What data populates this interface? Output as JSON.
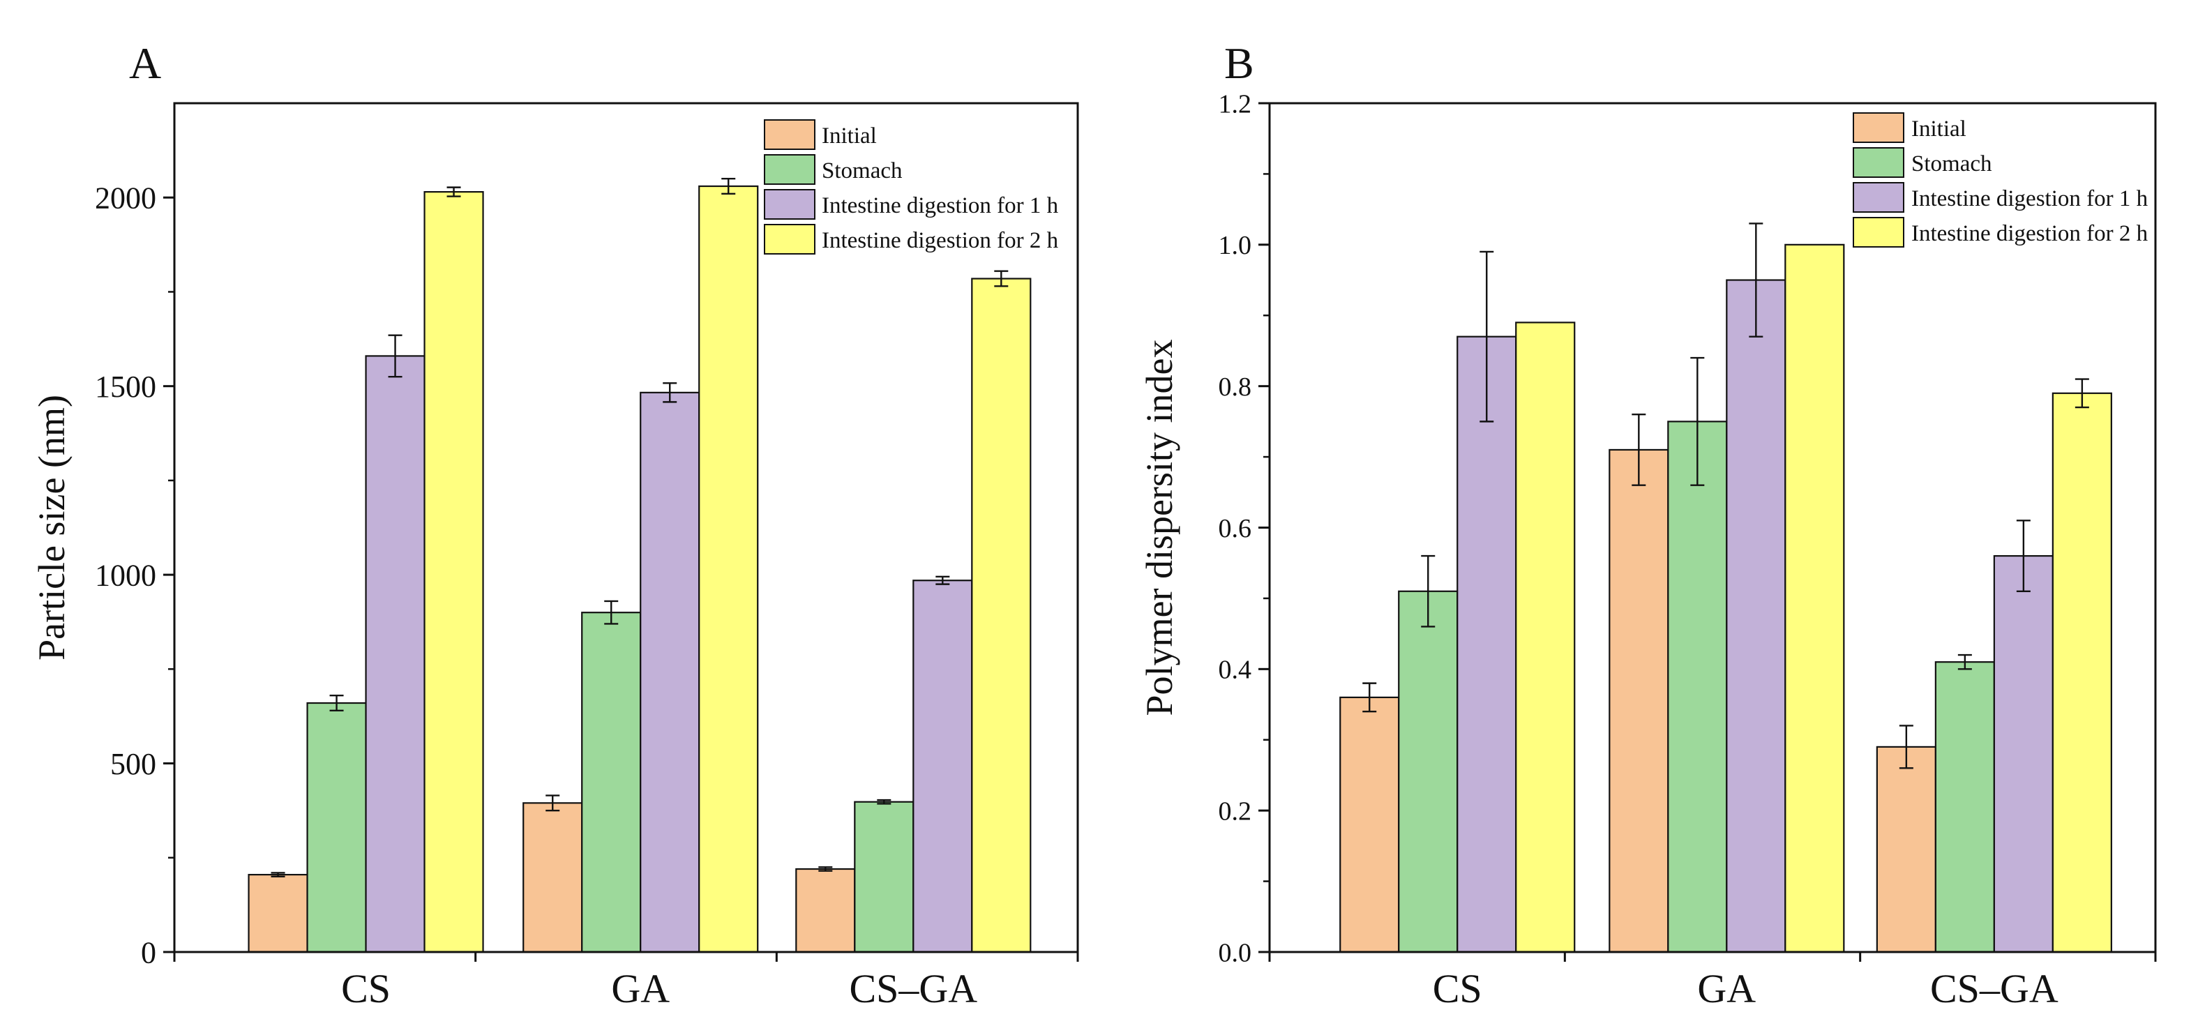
{
  "colors": {
    "initial": "#F8C495",
    "stomach": "#9DD99B",
    "intestine_1h": "#C2B1D8",
    "intestine_2h": "#FFFF80",
    "axis": "#111111"
  },
  "chart_data": [
    {
      "type": "bar",
      "panel_label": "A",
      "title": "",
      "xlabel": "",
      "ylabel": "Particle size (nm)",
      "ylim": [
        0,
        2250
      ],
      "yticks": [
        0,
        500,
        1000,
        1500,
        2000
      ],
      "ytick_labels": [
        "0",
        "500",
        "1000",
        "1500",
        "2000"
      ],
      "grid": false,
      "legend_position": "top-right",
      "categories": [
        "CS",
        "GA",
        "CS–GA"
      ],
      "series": [
        {
          "name": "Initial",
          "color_key": "initial",
          "values": [
            205,
            395,
            220
          ],
          "errors": [
            5,
            20,
            5
          ]
        },
        {
          "name": "Stomach",
          "color_key": "stomach",
          "values": [
            660,
            900,
            398
          ],
          "errors": [
            20,
            30,
            5
          ]
        },
        {
          "name": "Intestine digestion for 1 h",
          "color_key": "intestine_1h",
          "values": [
            1580,
            1483,
            985
          ],
          "errors": [
            55,
            25,
            10
          ]
        },
        {
          "name": "Intestine digestion for 2 h",
          "color_key": "intestine_2h",
          "values": [
            2015,
            2030,
            1785
          ],
          "errors": [
            12,
            20,
            20
          ]
        }
      ]
    },
    {
      "type": "bar",
      "panel_label": "B",
      "title": "",
      "xlabel": "",
      "ylabel": "Polymer dispersity index",
      "ylim": [
        0,
        1.2
      ],
      "yticks": [
        0,
        0.2,
        0.4,
        0.6,
        0.8,
        1.0,
        1.2
      ],
      "ytick_labels": [
        "0.0",
        "0.2",
        "0.4",
        "0.6",
        "0.8",
        "1.0",
        "1.2"
      ],
      "grid": false,
      "legend_position": "top-right",
      "categories": [
        "CS",
        "GA",
        "CS–GA"
      ],
      "series": [
        {
          "name": "Initial",
          "color_key": "initial",
          "values": [
            0.36,
            0.71,
            0.29
          ],
          "errors": [
            0.02,
            0.05,
            0.03
          ]
        },
        {
          "name": "Stomach",
          "color_key": "stomach",
          "values": [
            0.51,
            0.75,
            0.41
          ],
          "errors": [
            0.05,
            0.09,
            0.01
          ]
        },
        {
          "name": "Intestine digestion for 1 h",
          "color_key": "intestine_1h",
          "values": [
            0.87,
            0.95,
            0.56
          ],
          "errors": [
            0.12,
            0.08,
            0.05
          ]
        },
        {
          "name": "Intestine digestion for 2 h",
          "color_key": "intestine_2h",
          "values": [
            0.89,
            1.0,
            0.79
          ],
          "errors": [
            0,
            0,
            0.02
          ]
        }
      ]
    }
  ]
}
